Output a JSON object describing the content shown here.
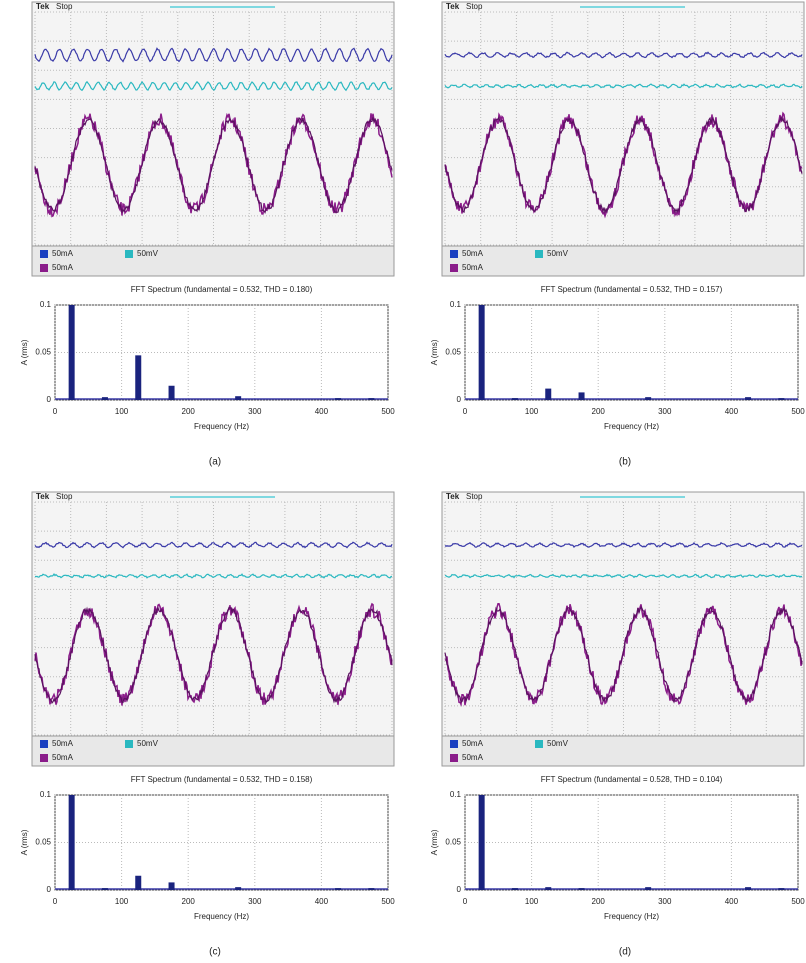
{
  "panels": [
    {
      "label": "(a)",
      "scope": {
        "brand": "Tek",
        "status": "Stop",
        "channels": [
          "50mA",
          "50mV",
          "50mA"
        ]
      }
    },
    {
      "label": "(b)",
      "scope": {
        "brand": "Tek",
        "status": "Stop",
        "channels": [
          "50mA",
          "50mV",
          "50mA"
        ]
      }
    },
    {
      "label": "(c)",
      "scope": {
        "brand": "Tek",
        "status": "Stop",
        "channels": [
          "50mA",
          "50mV",
          "50mA"
        ]
      }
    },
    {
      "label": "(d)",
      "scope": {
        "brand": "Tek",
        "status": "Stop",
        "channels": [
          "50mA",
          "50mV",
          "50mA"
        ]
      }
    }
  ],
  "chart_data": [
    {
      "type": "bar",
      "title": "FFT Spectrum (fundamental = 0.532, THD = 0.180)",
      "x_label": "Frequency (Hz)",
      "y_label": "A (rms)",
      "x": [
        25,
        75,
        125,
        175,
        275,
        425,
        475
      ],
      "values": [
        0.1,
        0.003,
        0.047,
        0.015,
        0.004,
        0.002,
        0.002
      ],
      "color": "#1a237e",
      "xlim": [
        0,
        500
      ],
      "xticks": [
        0,
        100,
        200,
        300,
        400,
        500
      ],
      "ylim": [
        0,
        0.1
      ],
      "yticks": [
        0,
        0.05,
        0.1
      ],
      "grid": true
    },
    {
      "type": "bar",
      "title": "FFT Spectrum (fundamental = 0.532, THD = 0.157)",
      "x_label": "Frequency (Hz)",
      "y_label": "A (rms)",
      "x": [
        25,
        75,
        125,
        175,
        275,
        425,
        475
      ],
      "values": [
        0.1,
        0.002,
        0.012,
        0.008,
        0.003,
        0.003,
        0.002
      ],
      "color": "#1a237e",
      "xlim": [
        0,
        500
      ],
      "xticks": [
        0,
        100,
        200,
        300,
        400,
        500
      ],
      "ylim": [
        0,
        0.1
      ],
      "yticks": [
        0,
        0.05,
        0.1
      ],
      "grid": true
    },
    {
      "type": "bar",
      "title": "FFT Spectrum (fundamental = 0.532, THD = 0.158)",
      "x_label": "Frequency (Hz)",
      "y_label": "A (rms)",
      "x": [
        25,
        75,
        125,
        175,
        275,
        425,
        475
      ],
      "values": [
        0.1,
        0.002,
        0.015,
        0.008,
        0.003,
        0.002,
        0.002
      ],
      "color": "#1a237e",
      "xlim": [
        0,
        500
      ],
      "xticks": [
        0,
        100,
        200,
        300,
        400,
        500
      ],
      "ylim": [
        0,
        0.1
      ],
      "yticks": [
        0,
        0.05,
        0.1
      ],
      "grid": true
    },
    {
      "type": "bar",
      "title": "FFT Spectrum (fundamental = 0.528, THD = 0.104)",
      "x_label": "Frequency (Hz)",
      "y_label": "A (rms)",
      "x": [
        25,
        75,
        125,
        175,
        275,
        425,
        475
      ],
      "values": [
        0.1,
        0.002,
        0.003,
        0.002,
        0.003,
        0.003,
        0.002
      ],
      "color": "#1a237e",
      "xlim": [
        0,
        500
      ],
      "xticks": [
        0,
        100,
        200,
        300,
        400,
        500
      ],
      "ylim": [
        0,
        0.1
      ],
      "yticks": [
        0,
        0.05,
        0.1
      ],
      "grid": true
    }
  ]
}
